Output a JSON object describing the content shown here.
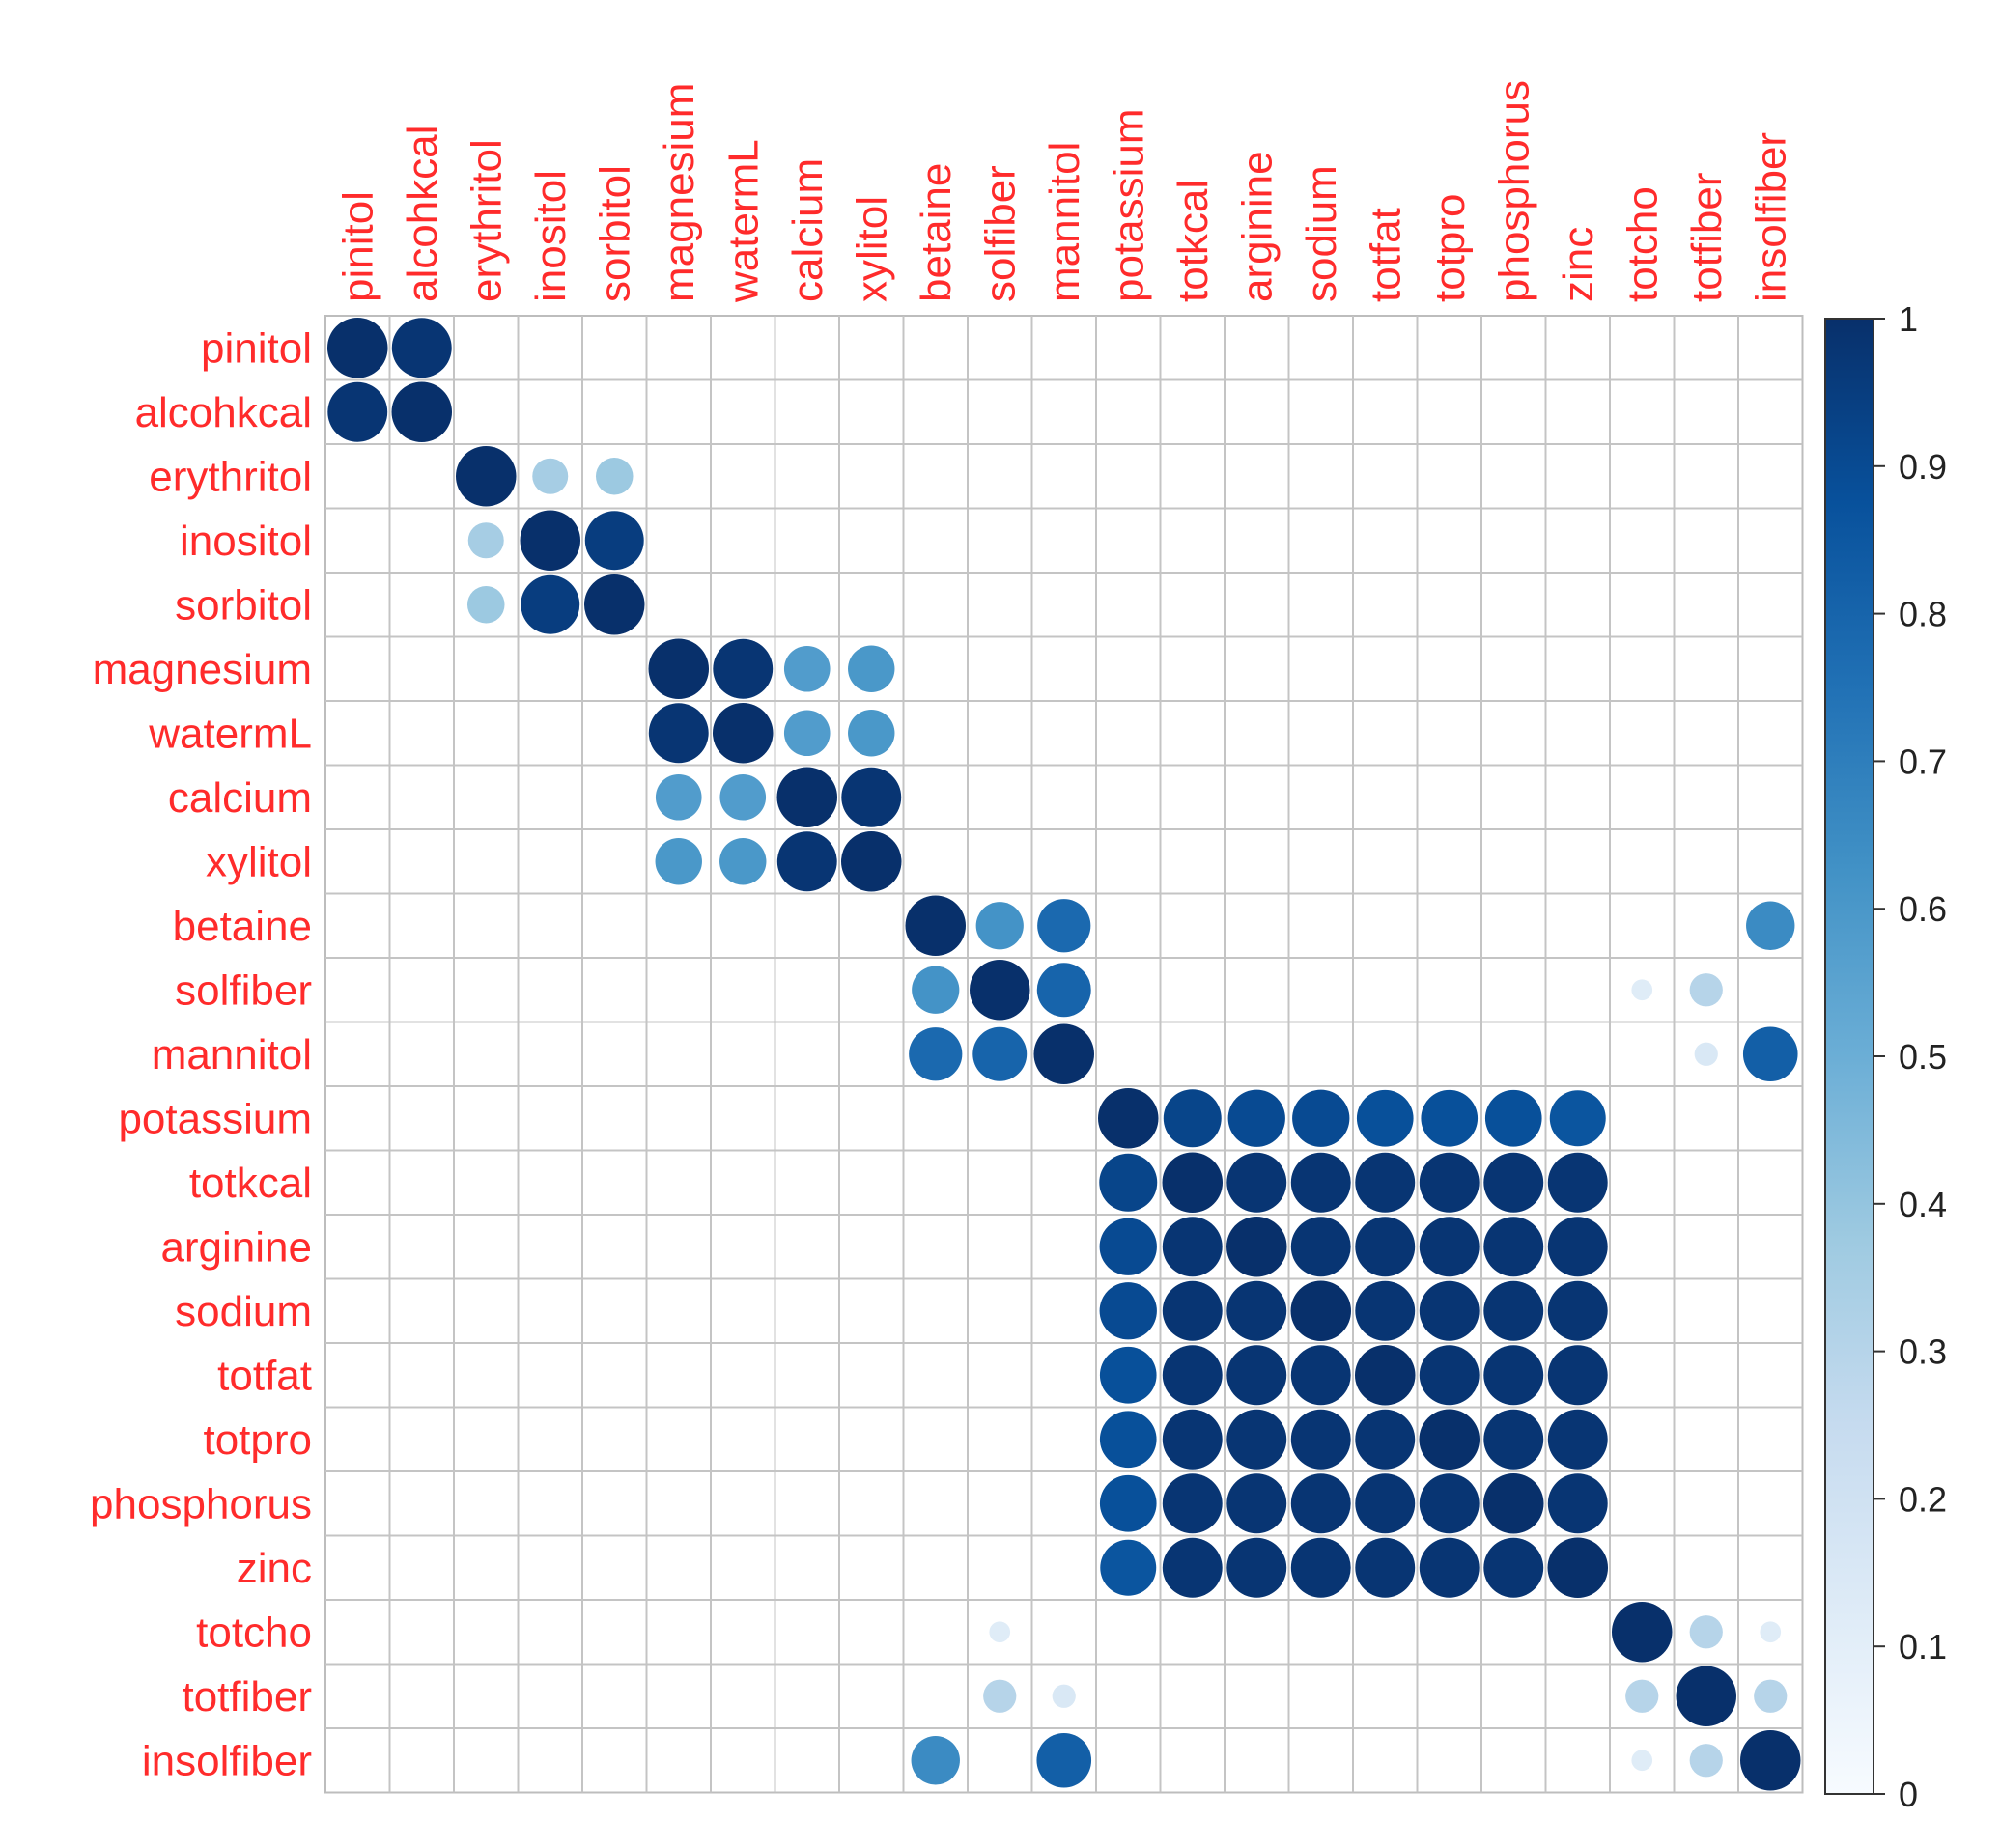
{
  "chart_data": {
    "type": "heatmap",
    "style": "correlation circle matrix (corrplot)",
    "title": "",
    "variables": [
      "pinitol",
      "alcohkcal",
      "erythritol",
      "inositol",
      "sorbitol",
      "magnesium",
      "watermL",
      "calcium",
      "xylitol",
      "betaine",
      "solfiber",
      "mannitol",
      "potassium",
      "totkcal",
      "arginine",
      "sodium",
      "totfat",
      "totpro",
      "phosphorus",
      "zinc",
      "totcho",
      "totfiber",
      "insolfiber"
    ],
    "matrix": [
      [
        1,
        0.98,
        0,
        0,
        0,
        0,
        0,
        0,
        0,
        0,
        0,
        0,
        0,
        0,
        0,
        0,
        0,
        0,
        0,
        0,
        0,
        0,
        0
      ],
      [
        0.98,
        1,
        0,
        0,
        0,
        0,
        0,
        0,
        0,
        0,
        0,
        0,
        0,
        0,
        0,
        0,
        0,
        0,
        0,
        0,
        0,
        0,
        0
      ],
      [
        0,
        0,
        1,
        0.35,
        0.38,
        0,
        0,
        0,
        0,
        0,
        0,
        0,
        0,
        0,
        0,
        0,
        0,
        0,
        0,
        0,
        0,
        0,
        0
      ],
      [
        0,
        0,
        0.35,
        1,
        0.95,
        0,
        0,
        0,
        0,
        0,
        0,
        0,
        0,
        0,
        0,
        0,
        0,
        0,
        0,
        0,
        0,
        0,
        0
      ],
      [
        0,
        0,
        0.38,
        0.95,
        1,
        0,
        0,
        0,
        0,
        0,
        0,
        0,
        0,
        0,
        0,
        0,
        0,
        0,
        0,
        0,
        0,
        0,
        0
      ],
      [
        0,
        0,
        0,
        0,
        0,
        1,
        0.98,
        0.58,
        0.6,
        0,
        0,
        0,
        0,
        0,
        0,
        0,
        0,
        0,
        0,
        0,
        0,
        0,
        0
      ],
      [
        0,
        0,
        0,
        0,
        0,
        0.98,
        1,
        0.58,
        0.6,
        0,
        0,
        0,
        0,
        0,
        0,
        0,
        0,
        0,
        0,
        0,
        0,
        0,
        0
      ],
      [
        0,
        0,
        0,
        0,
        0,
        0.58,
        0.58,
        1,
        0.98,
        0,
        0,
        0,
        0,
        0,
        0,
        0,
        0,
        0,
        0,
        0,
        0,
        0,
        0
      ],
      [
        0,
        0,
        0,
        0,
        0,
        0.6,
        0.6,
        0.98,
        1,
        0,
        0,
        0,
        0,
        0,
        0,
        0,
        0,
        0,
        0,
        0,
        0,
        0,
        0
      ],
      [
        0,
        0,
        0,
        0,
        0,
        0,
        0,
        0,
        0,
        1,
        0.62,
        0.78,
        0,
        0,
        0,
        0,
        0,
        0,
        0,
        0,
        0,
        0,
        0.65
      ],
      [
        0,
        0,
        0,
        0,
        0,
        0,
        0,
        0,
        0,
        0.62,
        1,
        0.8,
        0,
        0,
        0,
        0,
        0,
        0,
        0,
        0,
        0.12,
        0.3,
        0
      ],
      [
        0,
        0,
        0,
        0,
        0,
        0,
        0,
        0,
        0,
        0.78,
        0.8,
        1,
        0,
        0,
        0,
        0,
        0,
        0,
        0,
        0,
        0,
        0.15,
        0.82
      ],
      [
        0,
        0,
        0,
        0,
        0,
        0,
        0,
        0,
        0,
        0,
        0,
        0,
        1,
        0.92,
        0.9,
        0.9,
        0.88,
        0.88,
        0.88,
        0.86,
        0,
        0,
        0
      ],
      [
        0,
        0,
        0,
        0,
        0,
        0,
        0,
        0,
        0,
        0,
        0,
        0,
        0.92,
        1,
        0.98,
        0.98,
        0.98,
        0.98,
        0.98,
        0.98,
        0,
        0,
        0
      ],
      [
        0,
        0,
        0,
        0,
        0,
        0,
        0,
        0,
        0,
        0,
        0,
        0,
        0.9,
        0.98,
        1,
        0.98,
        0.98,
        0.98,
        0.98,
        0.98,
        0,
        0,
        0
      ],
      [
        0,
        0,
        0,
        0,
        0,
        0,
        0,
        0,
        0,
        0,
        0,
        0,
        0.9,
        0.98,
        0.98,
        1,
        0.98,
        0.98,
        0.98,
        0.98,
        0,
        0,
        0
      ],
      [
        0,
        0,
        0,
        0,
        0,
        0,
        0,
        0,
        0,
        0,
        0,
        0,
        0.88,
        0.98,
        0.98,
        0.98,
        1,
        0.98,
        0.98,
        0.98,
        0,
        0,
        0
      ],
      [
        0,
        0,
        0,
        0,
        0,
        0,
        0,
        0,
        0,
        0,
        0,
        0,
        0.88,
        0.98,
        0.98,
        0.98,
        0.98,
        1,
        0.98,
        0.98,
        0,
        0,
        0
      ],
      [
        0,
        0,
        0,
        0,
        0,
        0,
        0,
        0,
        0,
        0,
        0,
        0,
        0.88,
        0.98,
        0.98,
        0.98,
        0.98,
        0.98,
        1,
        0.98,
        0,
        0,
        0
      ],
      [
        0,
        0,
        0,
        0,
        0,
        0,
        0,
        0,
        0,
        0,
        0,
        0,
        0.86,
        0.98,
        0.98,
        0.98,
        0.98,
        0.98,
        0.98,
        1,
        0,
        0,
        0
      ],
      [
        0,
        0,
        0,
        0,
        0,
        0,
        0,
        0,
        0,
        0,
        0.12,
        0,
        0,
        0,
        0,
        0,
        0,
        0,
        0,
        0,
        1,
        0.3,
        0.12
      ],
      [
        0,
        0,
        0,
        0,
        0,
        0,
        0,
        0,
        0,
        0,
        0.3,
        0.15,
        0,
        0,
        0,
        0,
        0,
        0,
        0,
        0,
        0.3,
        1,
        0.3
      ],
      [
        0,
        0,
        0,
        0,
        0,
        0,
        0,
        0,
        0,
        0.65,
        0,
        0.82,
        0,
        0,
        0,
        0,
        0,
        0,
        0,
        0,
        0.12,
        0.3,
        1
      ]
    ],
    "colorbar": {
      "ticks": [
        "1",
        "0.9",
        "0.8",
        "0.7",
        "0.6",
        "0.5",
        "0.4",
        "0.3",
        "0.2",
        "0.1",
        "0"
      ],
      "range": [
        0,
        1
      ],
      "low_color": "#f7fbff",
      "high_color": "#08306b"
    },
    "label_color": "#ff2b2b",
    "grid": true,
    "legend_position": "right"
  }
}
